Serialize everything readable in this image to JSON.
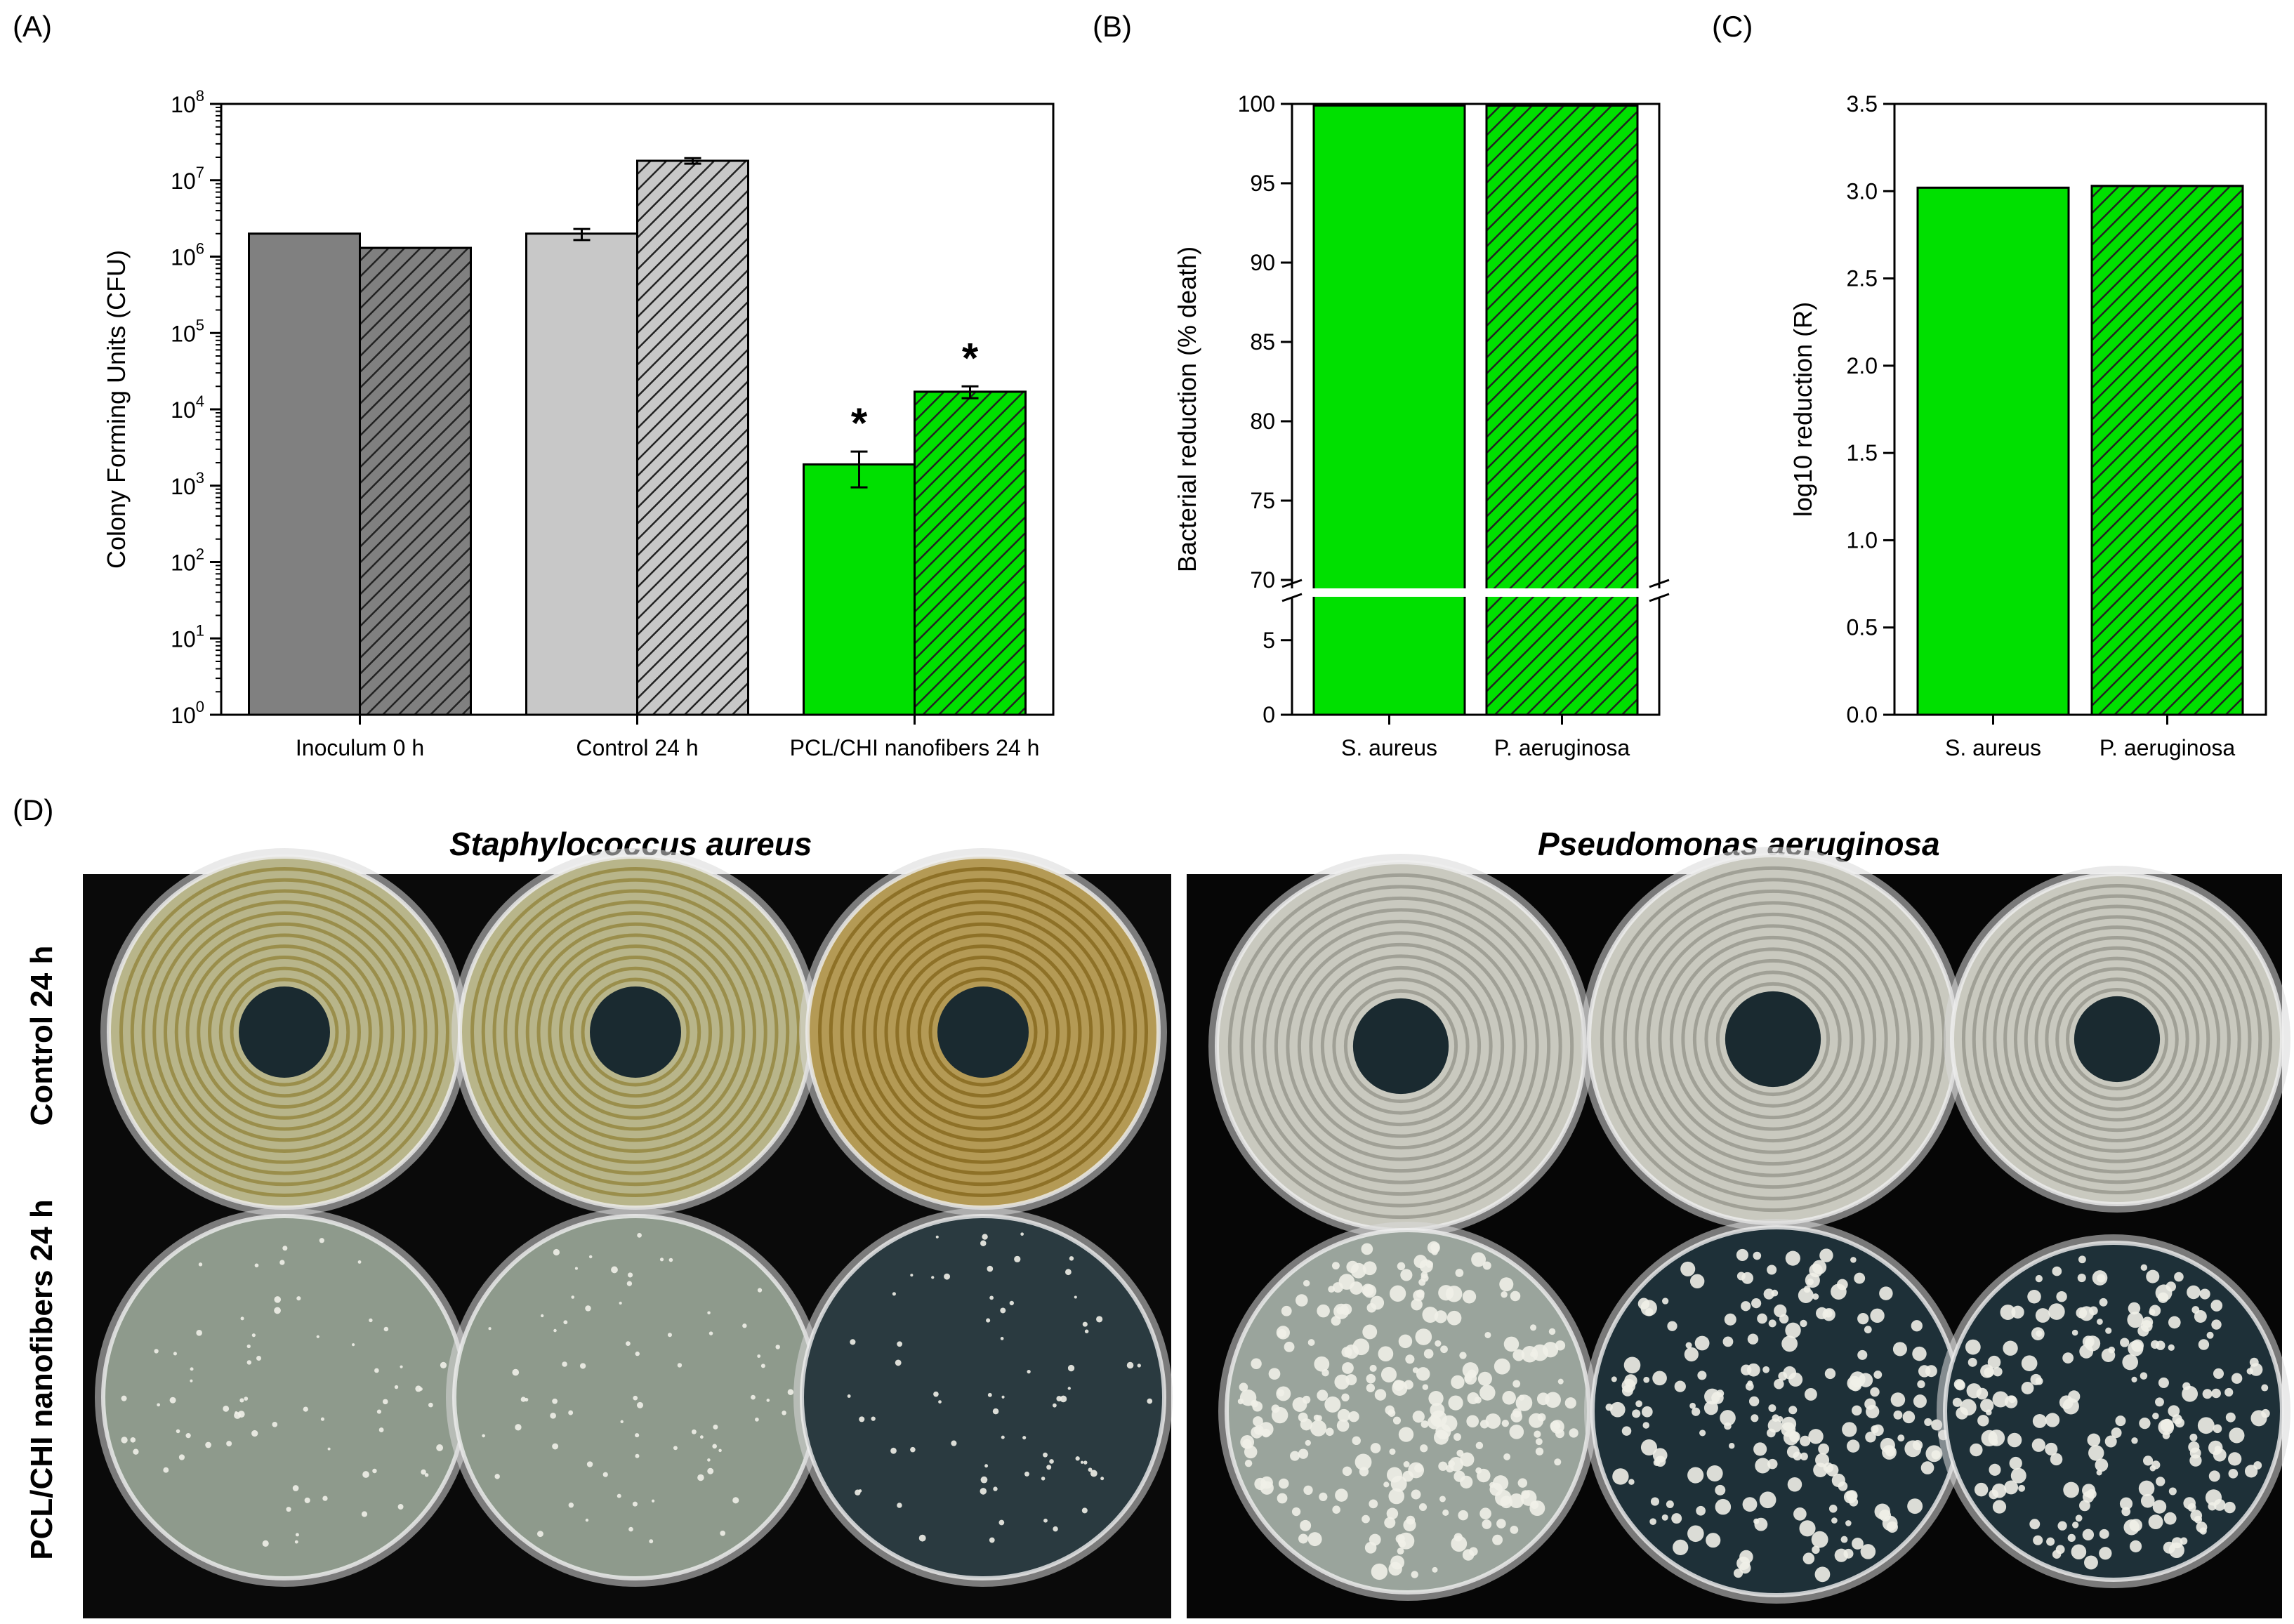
{
  "panel_labels": {
    "a": "(A)",
    "b": "(B)",
    "c": "(C)",
    "d": "(D)"
  },
  "colors": {
    "inoculum": "#808080",
    "control": "#c8c8c8",
    "treated": "#00e000",
    "hatch": "#222222"
  },
  "chart_data": [
    {
      "id": "A",
      "type": "bar",
      "scale": "log",
      "ylabel": "Colony Forming Units (CFU)",
      "ylim": [
        1,
        100000000
      ],
      "yticks": [
        {
          "base": "10",
          "exp": "0",
          "value": 1
        },
        {
          "base": "10",
          "exp": "1",
          "value": 10
        },
        {
          "base": "10",
          "exp": "2",
          "value": 100
        },
        {
          "base": "10",
          "exp": "3",
          "value": 1000
        },
        {
          "base": "10",
          "exp": "4",
          "value": 10000
        },
        {
          "base": "10",
          "exp": "5",
          "value": 100000
        },
        {
          "base": "10",
          "exp": "6",
          "value": 1000000
        },
        {
          "base": "10",
          "exp": "7",
          "value": 10000000
        },
        {
          "base": "10",
          "exp": "8",
          "value": 100000000
        }
      ],
      "categories": [
        "Inoculum 0 h",
        "Control 24 h",
        "PCL/CHI nanofibers 24 h"
      ],
      "series": [
        {
          "pattern": "solid",
          "values": [
            2000000,
            2000000,
            1900
          ],
          "errors": [
            null,
            [
              1650000,
              2300000
            ],
            [
              950,
              2800
            ]
          ],
          "significance": [
            null,
            null,
            "*"
          ]
        },
        {
          "pattern": "hatched",
          "values": [
            1300000,
            18000000,
            17000
          ],
          "errors": [
            null,
            [
              16500000,
              19500000
            ],
            [
              14000,
              20000
            ]
          ],
          "significance": [
            null,
            null,
            "*"
          ]
        }
      ],
      "grid": false
    },
    {
      "id": "B",
      "type": "bar",
      "ylabel": "Bacterial reduction (% death)",
      "ylim": [
        0,
        100
      ],
      "axis_break": [
        8,
        70
      ],
      "yticks_lower": [
        "0",
        "5"
      ],
      "yticks_upper": [
        "70",
        "75",
        "80",
        "85",
        "90",
        "95",
        "100"
      ],
      "categories": [
        "S. aureus",
        "P. aeruginosa"
      ],
      "values": [
        99.9,
        99.9
      ],
      "grid": false
    },
    {
      "id": "C",
      "type": "bar",
      "ylabel": "log10 reduction (R)",
      "ylim": [
        0,
        3.5
      ],
      "yticks": [
        "0.0",
        "0.5",
        "1.0",
        "1.5",
        "2.0",
        "2.5",
        "3.0",
        "3.5"
      ],
      "categories": [
        "S. aureus",
        "P. aeruginosa"
      ],
      "values": [
        3.02,
        3.03
      ],
      "grid": false
    }
  ],
  "photos": {
    "species": [
      "Staphylococcus aureus",
      "Pseudomonas aeruginosa"
    ],
    "rows": [
      "Control 24 h",
      "PCL/CHI nanofibers 24 h"
    ]
  }
}
